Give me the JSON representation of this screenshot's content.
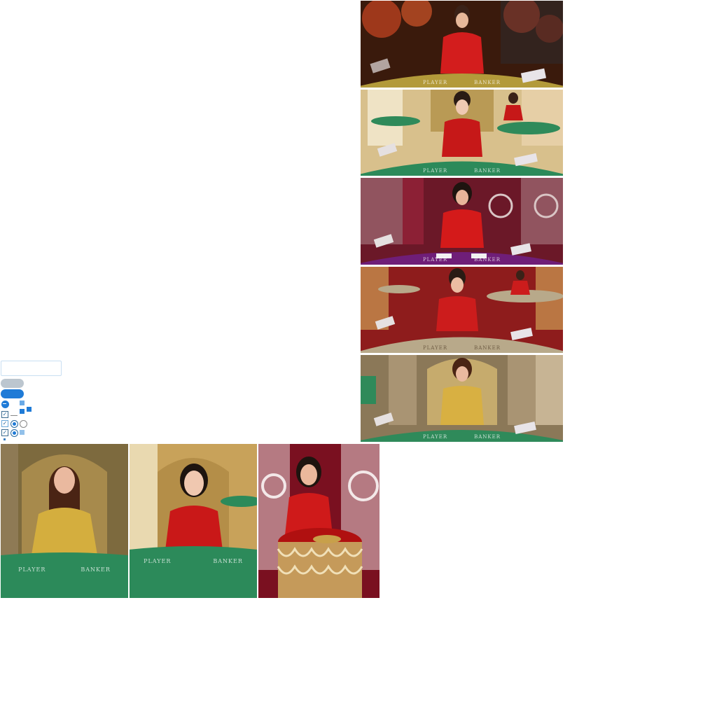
{
  "tiles": [
    {
      "id": "t1",
      "felt": "#9c7d2f",
      "wall": "#5a2a12",
      "accent": "#c9482b",
      "dress": "#d31d1d",
      "player_label": "PLAYER",
      "banker_label": "BANKER"
    },
    {
      "id": "t2",
      "felt": "#2c8a5a",
      "wall": "#c9a86a",
      "accent": "#efe3c5",
      "dress": "#c61818",
      "player_label": "PLAYER",
      "banker_label": "BANKER"
    },
    {
      "id": "t3",
      "felt": "#6f1e78",
      "wall": "#6b1828",
      "accent": "#d9c5c5",
      "dress": "#d41a1a",
      "player_label": "PLAYER",
      "banker_label": "BANKER"
    },
    {
      "id": "t4",
      "felt": "#b8a98a",
      "wall": "#8e1c1c",
      "accent": "#d7b35e",
      "dress": "#cc1c1c",
      "player_label": "PLAYER",
      "banker_label": "BANKER"
    },
    {
      "id": "t5",
      "felt": "#2f8a5a",
      "wall": "#8b7858",
      "accent": "#d6c28d",
      "dress": "#d8b042",
      "player_label": "PLAYER",
      "banker_label": "BANKER"
    }
  ],
  "bottom_tiles": [
    {
      "id": "b1",
      "felt": "#2c8a5a",
      "wall": "#7d6a3e",
      "dress": "#d4ae3e",
      "player_label": "PLAYER",
      "banker_label": "BANKER"
    },
    {
      "id": "b2",
      "felt": "#2c8a5a",
      "wall": "#c8a25a",
      "dress": "#c91818",
      "player_label": "PLAYER",
      "banker_label": "BANKER"
    },
    {
      "id": "b3",
      "felt": "#b01010",
      "wall": "#7a1020",
      "dress": "#cf1a1a"
    }
  ],
  "controls": {
    "input_value": "",
    "primary_color": "#1f7bd7",
    "disabled_color": "#bcc6cf"
  }
}
